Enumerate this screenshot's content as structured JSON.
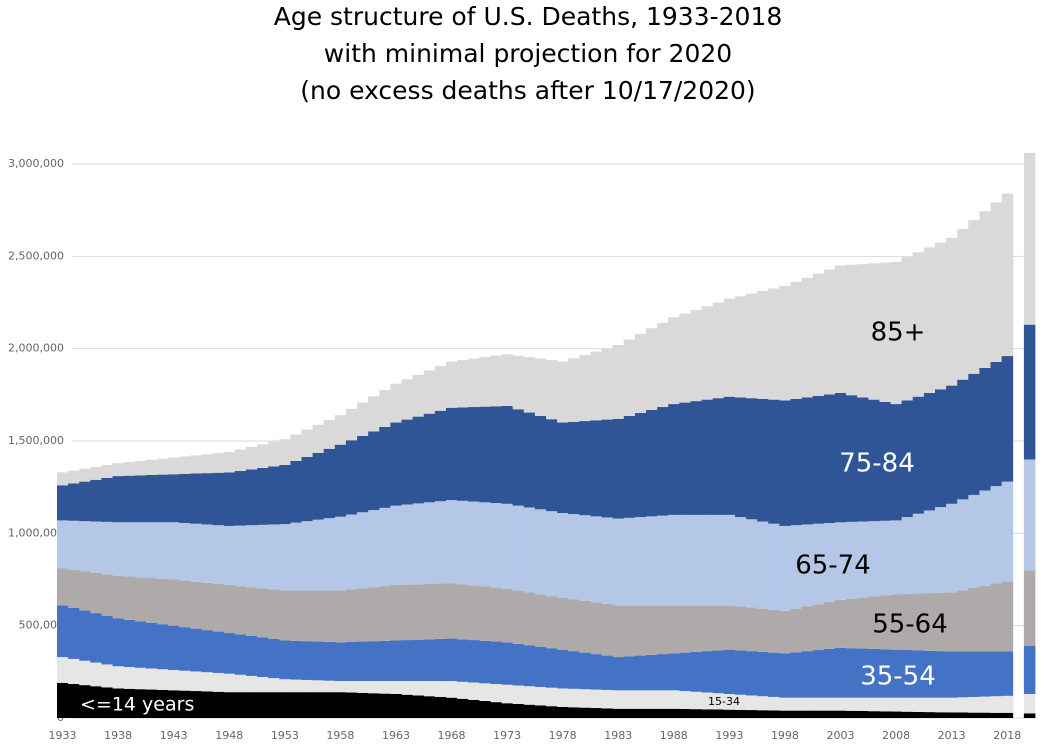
{
  "chart_data": {
    "type": "stacked_bar",
    "title": [
      "Age structure of U.S. Deaths, 1933-2018",
      "with minimal projection for 2020",
      "(no excess deaths after 10/17/2020)"
    ],
    "categories": [
      "1933",
      null,
      null,
      null,
      null,
      "1938",
      null,
      null,
      null,
      null,
      "1943",
      null,
      null,
      null,
      null,
      "1948",
      null,
      null,
      null,
      null,
      "1953",
      null,
      null,
      null,
      null,
      "1958",
      null,
      null,
      null,
      null,
      "1963",
      null,
      null,
      null,
      null,
      "1968",
      null,
      null,
      null,
      null,
      "1973",
      null,
      null,
      null,
      null,
      "1978",
      null,
      null,
      null,
      null,
      "1983",
      null,
      null,
      null,
      null,
      "1988",
      null,
      null,
      null,
      null,
      "1993",
      null,
      null,
      null,
      null,
      "1998",
      null,
      null,
      null,
      null,
      "2003",
      null,
      null,
      null,
      null,
      "2008",
      null,
      null,
      null,
      null,
      "2013",
      null,
      null,
      null,
      null,
      "2018",
      null,
      null
    ],
    "ylim": [
      0,
      3000000
    ],
    "yticks": [
      0,
      {
        "value": 500000,
        "label": "500,000"
      },
      {
        "value": 1000000,
        "label": "1,000,000"
      },
      {
        "value": 1500000,
        "label": "1,500,000"
      },
      {
        "value": 2000000,
        "label": "2,000,000"
      },
      {
        "value": 2500000,
        "label": "2,500,000"
      },
      {
        "value": 3000000,
        "label": "3,000,000"
      }
    ],
    "grid": true,
    "series": [
      {
        "name": "<=14 years",
        "color": "#000000",
        "values": [
          190000,
          184000,
          178000,
          172000,
          166000,
          160000,
          158000,
          156000,
          154000,
          152000,
          150000,
          148000,
          146000,
          144000,
          142000,
          140000,
          140000,
          140000,
          140000,
          140000,
          140000,
          140000,
          140000,
          140000,
          140000,
          140000,
          138000,
          136000,
          134000,
          132000,
          130000,
          126000,
          122000,
          118000,
          114000,
          110000,
          104000,
          98000,
          92000,
          86000,
          80000,
          76000,
          72000,
          68000,
          64000,
          60000,
          58000,
          56000,
          54000,
          52000,
          50000,
          50000,
          50000,
          50000,
          50000,
          50000,
          49000,
          48000,
          47000,
          46000,
          45000,
          44000,
          43000,
          42000,
          41000,
          40000,
          40000,
          40000,
          40000,
          40000,
          40000,
          39000,
          38000,
          37000,
          36000,
          35000,
          34000,
          33000,
          32000,
          31000,
          30000,
          30000,
          29000,
          29000,
          28000,
          28000,
          null,
          25000
        ]
      },
      {
        "name": "15-34",
        "color": "#e7e6e6",
        "values": [
          140000,
          136000,
          132000,
          128000,
          124000,
          120000,
          118000,
          116000,
          114000,
          112000,
          110000,
          108000,
          106000,
          104000,
          102000,
          100000,
          94000,
          88000,
          82000,
          76000,
          70000,
          68000,
          66000,
          64000,
          62000,
          60000,
          62000,
          64000,
          66000,
          68000,
          70000,
          74000,
          78000,
          82000,
          86000,
          90000,
          92000,
          94000,
          96000,
          98000,
          100000,
          100000,
          100000,
          100000,
          100000,
          100000,
          100000,
          100000,
          100000,
          100000,
          100000,
          100000,
          100000,
          100000,
          100000,
          100000,
          97000,
          94000,
          91000,
          88000,
          85000,
          82000,
          79000,
          76000,
          73000,
          70000,
          70000,
          70000,
          70000,
          70000,
          70000,
          71000,
          72000,
          73000,
          74000,
          75000,
          76000,
          77000,
          78000,
          79000,
          80000,
          82000,
          85000,
          87000,
          90000,
          92000,
          null,
          105000
        ]
      },
      {
        "name": "35-54",
        "color": "#4472c4",
        "values": [
          280000,
          276000,
          272000,
          268000,
          264000,
          260000,
          256000,
          252000,
          248000,
          244000,
          240000,
          236000,
          232000,
          228000,
          224000,
          220000,
          218000,
          216000,
          214000,
          212000,
          210000,
          210000,
          210000,
          210000,
          210000,
          210000,
          212000,
          214000,
          216000,
          218000,
          220000,
          222000,
          224000,
          226000,
          228000,
          230000,
          230000,
          230000,
          230000,
          230000,
          230000,
          226000,
          222000,
          218000,
          214000,
          210000,
          204000,
          198000,
          192000,
          186000,
          180000,
          184000,
          188000,
          192000,
          196000,
          200000,
          208000,
          216000,
          224000,
          232000,
          240000,
          240000,
          240000,
          240000,
          240000,
          240000,
          246000,
          252000,
          258000,
          264000,
          270000,
          268000,
          266000,
          264000,
          262000,
          260000,
          258000,
          256000,
          254000,
          252000,
          250000,
          248000,
          246000,
          244000,
          242000,
          240000,
          null,
          260000
        ]
      },
      {
        "name": "55-64",
        "color": "#aeaaaa",
        "values": [
          200000,
          206000,
          212000,
          218000,
          224000,
          230000,
          234000,
          238000,
          242000,
          246000,
          250000,
          252000,
          254000,
          256000,
          258000,
          260000,
          262000,
          264000,
          266000,
          268000,
          270000,
          272000,
          274000,
          276000,
          278000,
          280000,
          284000,
          288000,
          292000,
          296000,
          300000,
          300000,
          300000,
          300000,
          300000,
          300000,
          298000,
          296000,
          294000,
          292000,
          290000,
          288000,
          286000,
          284000,
          282000,
          280000,
          280000,
          280000,
          280000,
          280000,
          280000,
          276000,
          272000,
          268000,
          264000,
          260000,
          256000,
          252000,
          248000,
          244000,
          240000,
          238000,
          236000,
          234000,
          232000,
          230000,
          236000,
          242000,
          248000,
          254000,
          260000,
          268000,
          276000,
          284000,
          292000,
          300000,
          304000,
          308000,
          312000,
          316000,
          320000,
          332000,
          344000,
          356000,
          368000,
          380000,
          null,
          410000
        ]
      },
      {
        "name": "65-74",
        "color": "#b4c7e7",
        "values": [
          260000,
          266000,
          272000,
          278000,
          284000,
          290000,
          294000,
          298000,
          302000,
          306000,
          310000,
          312000,
          314000,
          316000,
          318000,
          320000,
          328000,
          336000,
          344000,
          352000,
          360000,
          368000,
          376000,
          384000,
          392000,
          400000,
          406000,
          412000,
          418000,
          424000,
          430000,
          434000,
          438000,
          442000,
          446000,
          450000,
          452000,
          454000,
          456000,
          458000,
          460000,
          460000,
          460000,
          460000,
          460000,
          460000,
          462000,
          464000,
          466000,
          468000,
          470000,
          474000,
          478000,
          482000,
          486000,
          490000,
          490000,
          490000,
          490000,
          490000,
          490000,
          484000,
          478000,
          472000,
          466000,
          460000,
          452000,
          444000,
          436000,
          428000,
          420000,
          416000,
          412000,
          408000,
          404000,
          400000,
          416000,
          432000,
          448000,
          464000,
          480000,
          492000,
          504000,
          516000,
          528000,
          540000,
          null,
          600000
        ]
      },
      {
        "name": "75-84",
        "color": "#2f5597",
        "values": [
          190000,
          202000,
          214000,
          226000,
          238000,
          250000,
          252000,
          254000,
          256000,
          258000,
          260000,
          266000,
          272000,
          278000,
          284000,
          290000,
          296000,
          302000,
          308000,
          314000,
          320000,
          334000,
          348000,
          362000,
          376000,
          390000,
          402000,
          414000,
          426000,
          438000,
          450000,
          460000,
          470000,
          480000,
          490000,
          500000,
          506000,
          512000,
          518000,
          524000,
          530000,
          522000,
          514000,
          506000,
          498000,
          490000,
          500000,
          510000,
          520000,
          530000,
          540000,
          552000,
          564000,
          576000,
          588000,
          600000,
          608000,
          616000,
          624000,
          632000,
          640000,
          648000,
          656000,
          664000,
          672000,
          680000,
          684000,
          688000,
          692000,
          696000,
          700000,
          686000,
          672000,
          658000,
          644000,
          630000,
          632000,
          634000,
          636000,
          638000,
          640000,
          648000,
          656000,
          664000,
          672000,
          680000,
          null,
          730000
        ]
      },
      {
        "name": "85+",
        "color": "#d9d9d9",
        "values": [
          70000,
          70000,
          70000,
          70000,
          70000,
          70000,
          74000,
          78000,
          82000,
          86000,
          90000,
          94000,
          98000,
          102000,
          106000,
          110000,
          116000,
          122000,
          128000,
          134000,
          140000,
          144000,
          148000,
          152000,
          156000,
          160000,
          170000,
          180000,
          190000,
          200000,
          210000,
          218000,
          226000,
          234000,
          242000,
          250000,
          256000,
          262000,
          268000,
          274000,
          280000,
          290000,
          300000,
          310000,
          320000,
          330000,
          344000,
          358000,
          372000,
          386000,
          400000,
          414000,
          428000,
          442000,
          456000,
          470000,
          482000,
          494000,
          506000,
          518000,
          530000,
          548000,
          566000,
          584000,
          602000,
          620000,
          634000,
          648000,
          662000,
          676000,
          690000,
          706000,
          722000,
          738000,
          754000,
          770000,
          776000,
          782000,
          788000,
          794000,
          800000,
          816000,
          832000,
          848000,
          864000,
          880000,
          null,
          930000
        ]
      }
    ]
  }
}
